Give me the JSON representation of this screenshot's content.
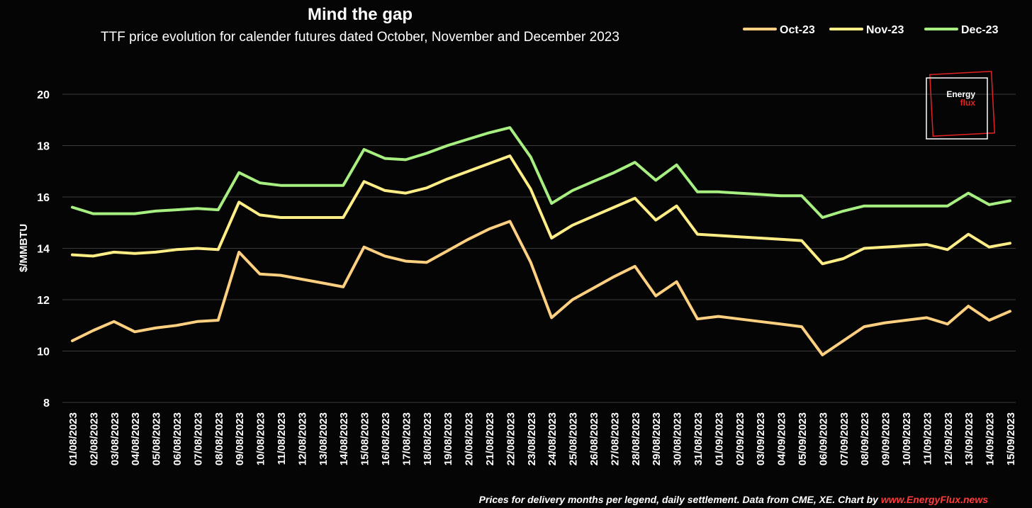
{
  "chart_data": {
    "type": "line",
    "title": "Mind the gap",
    "subtitle": "TTF price evolution for calender futures dated October, November and December 2023",
    "xlabel": "",
    "ylabel": "$/MMBTU",
    "ylim": [
      8,
      20
    ],
    "yticks": [
      8,
      10,
      12,
      14,
      16,
      18,
      20
    ],
    "grid": true,
    "legend_position": "top-right",
    "categories": [
      "01/08/2023",
      "02/08/2023",
      "03/08/2023",
      "04/08/2023",
      "05/08/2023",
      "06/08/2023",
      "07/08/2023",
      "08/08/2023",
      "09/08/2023",
      "10/08/2023",
      "11/08/2023",
      "12/08/2023",
      "13/08/2023",
      "14/08/2023",
      "15/08/2023",
      "16/08/2023",
      "17/08/2023",
      "18/08/2023",
      "19/08/2023",
      "20/08/2023",
      "21/08/2023",
      "22/08/2023",
      "23/08/2023",
      "24/08/2023",
      "25/08/2023",
      "26/08/2023",
      "27/08/2023",
      "28/08/2023",
      "29/08/2023",
      "30/08/2023",
      "31/08/2023",
      "01/09/2023",
      "02/09/2023",
      "03/09/2023",
      "04/09/2023",
      "05/09/2023",
      "06/09/2023",
      "07/09/2023",
      "08/09/2023",
      "09/09/2023",
      "10/09/2023",
      "11/09/2023",
      "12/09/2023",
      "13/09/2023",
      "14/09/2023",
      "15/09/2023"
    ],
    "series": [
      {
        "name": "Oct-23",
        "color": "#ffd080",
        "values": [
          10.4,
          10.8,
          11.15,
          10.75,
          10.9,
          11.0,
          11.15,
          11.2,
          13.85,
          13.0,
          12.95,
          12.8,
          12.65,
          12.5,
          14.05,
          13.7,
          13.5,
          13.45,
          13.9,
          14.35,
          14.75,
          15.05,
          13.45,
          11.3,
          12.0,
          12.45,
          12.9,
          13.3,
          12.15,
          12.7,
          11.25,
          11.35,
          11.25,
          11.15,
          11.05,
          10.95,
          9.85,
          10.4,
          10.95,
          11.1,
          11.2,
          11.3,
          11.05,
          11.75,
          11.2,
          11.55
        ]
      },
      {
        "name": "Nov-23",
        "color": "#ffee85",
        "values": [
          13.75,
          13.7,
          13.85,
          13.8,
          13.85,
          13.95,
          14.0,
          13.95,
          15.8,
          15.3,
          15.2,
          15.2,
          15.2,
          15.2,
          16.6,
          16.25,
          16.15,
          16.35,
          16.7,
          17.0,
          17.3,
          17.6,
          16.3,
          14.4,
          14.9,
          15.25,
          15.6,
          15.95,
          15.1,
          15.65,
          14.55,
          14.5,
          14.45,
          14.4,
          14.35,
          14.3,
          13.4,
          13.6,
          14.0,
          14.05,
          14.1,
          14.15,
          13.95,
          14.55,
          14.05,
          14.2
        ]
      },
      {
        "name": "Dec-23",
        "color": "#a6ef80",
        "values": [
          15.6,
          15.35,
          15.35,
          15.35,
          15.45,
          15.5,
          15.55,
          15.5,
          16.95,
          16.55,
          16.45,
          16.45,
          16.45,
          16.45,
          17.85,
          17.5,
          17.45,
          17.7,
          18.0,
          18.25,
          18.5,
          18.7,
          17.55,
          15.75,
          16.25,
          16.6,
          16.95,
          17.35,
          16.65,
          17.25,
          16.2,
          16.2,
          16.15,
          16.1,
          16.05,
          16.05,
          15.2,
          15.45,
          15.65,
          15.65,
          15.65,
          15.65,
          15.65,
          16.15,
          15.7,
          15.85
        ]
      }
    ]
  },
  "logo": {
    "line1": "Energy",
    "line2": "flux"
  },
  "footer": {
    "text": "Prices for delivery months per legend, daily settlement. Data from CME, XE. Chart by ",
    "link_text": "www.EnergyFlux.news"
  }
}
